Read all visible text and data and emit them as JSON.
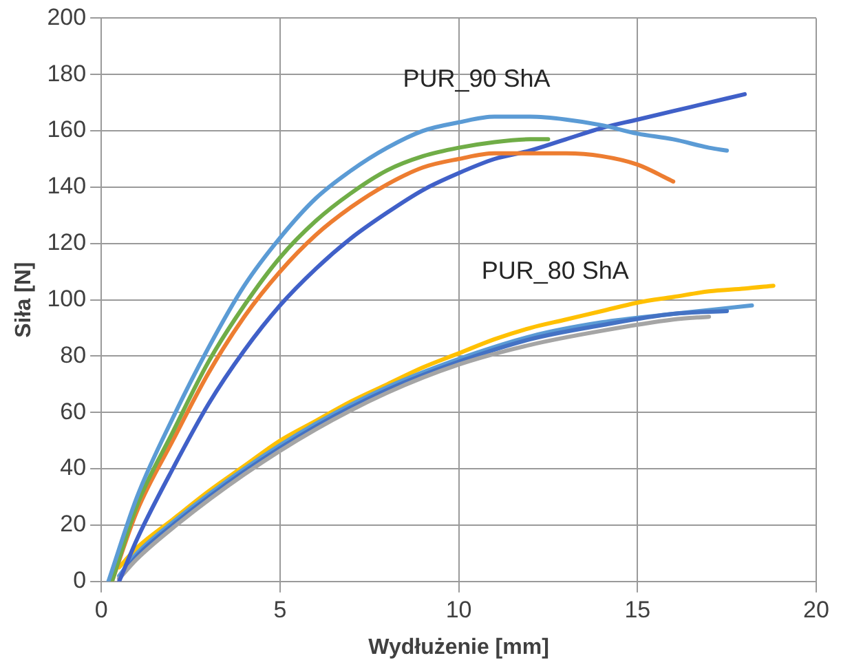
{
  "chart_data": {
    "type": "line",
    "xlabel": "Wydłużenie [mm]",
    "ylabel": "Siła [N]",
    "xlim": [
      0,
      20
    ],
    "xticks": [
      0,
      5,
      10,
      15,
      20
    ],
    "ylim": [
      0,
      200
    ],
    "yticks": [
      0,
      20,
      40,
      60,
      80,
      100,
      120,
      140,
      160,
      180,
      200
    ],
    "grid": true,
    "legend": false,
    "marker": "none",
    "line_style": "solid",
    "annotations": [
      "PUR_90 ShA",
      "PUR_80 ShA"
    ],
    "series": [
      {
        "color": "#5b9bd5",
        "x": [
          0.2,
          1,
          2,
          3,
          4,
          5,
          6,
          7,
          8,
          9,
          10,
          11,
          12,
          13,
          14,
          15,
          16,
          17,
          17.5
        ],
        "values": [
          0,
          30,
          58,
          83,
          105,
          122,
          136,
          146,
          154,
          160,
          163,
          165,
          165,
          164,
          162,
          159,
          157,
          154,
          153
        ]
      },
      {
        "color": "#70ad47",
        "x": [
          0.3,
          1,
          2,
          3,
          4,
          5,
          6,
          7,
          8,
          9,
          10,
          11,
          12,
          12.5
        ],
        "values": [
          0,
          27,
          53,
          78,
          98,
          115,
          128,
          138,
          146,
          151,
          154,
          156,
          157,
          157
        ]
      },
      {
        "color": "#ed7d31",
        "x": [
          0.3,
          1,
          2,
          3,
          4,
          5,
          6,
          7,
          8,
          9,
          10,
          11,
          12,
          13,
          14,
          15,
          16
        ],
        "values": [
          0,
          25,
          50,
          74,
          94,
          110,
          123,
          133,
          141,
          147,
          150,
          152,
          152,
          152,
          151,
          148,
          142
        ]
      },
      {
        "color": "#4060c8",
        "x": [
          0.5,
          1,
          2,
          3,
          4,
          5,
          6,
          7,
          8,
          9,
          10,
          11,
          12,
          13,
          14,
          15,
          16,
          17,
          18
        ],
        "values": [
          0,
          15,
          40,
          63,
          82,
          98,
          111,
          122,
          131,
          139,
          145,
          150,
          153,
          157,
          161,
          164,
          167,
          170,
          173
        ]
      },
      {
        "color": "#a5a5a5",
        "x": [
          0.5,
          1,
          2,
          4,
          6,
          8,
          10,
          12,
          14,
          16,
          17
        ],
        "values": [
          1,
          8,
          19,
          38,
          54,
          67,
          77,
          84,
          89,
          93,
          94
        ]
      },
      {
        "color": "#4472c4",
        "x": [
          0.5,
          1,
          2,
          4,
          6,
          8,
          10,
          12,
          14,
          16,
          17.5
        ],
        "values": [
          1,
          9,
          20,
          39,
          55,
          68,
          78,
          86,
          91,
          95,
          96
        ]
      },
      {
        "color": "#5b9bd5",
        "x": [
          0.5,
          1,
          2,
          4,
          6,
          8,
          10,
          12,
          14,
          16,
          18.2
        ],
        "values": [
          2,
          10,
          21,
          40,
          56,
          69,
          79,
          87,
          92,
          95,
          98
        ]
      },
      {
        "color": "#ffc000",
        "x": [
          0.5,
          1,
          2,
          3,
          4,
          5,
          6,
          7,
          8,
          9,
          10,
          11,
          12,
          13,
          14,
          15,
          16,
          17,
          18,
          18.8
        ],
        "values": [
          5,
          12,
          22,
          32,
          41,
          50,
          57,
          64,
          70,
          76,
          81,
          86,
          90,
          93,
          96,
          99,
          101,
          103,
          104,
          105
        ]
      }
    ]
  }
}
